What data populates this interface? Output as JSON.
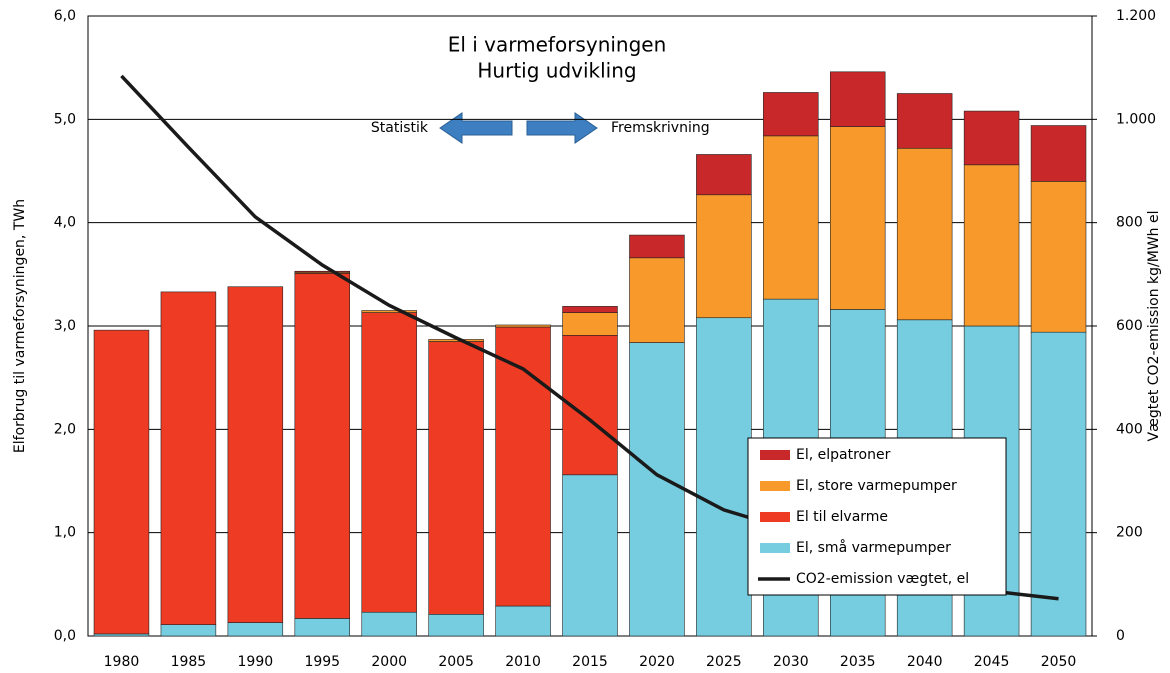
{
  "chart_data": {
    "type": "bar",
    "stacked": true,
    "title": "El i varmeforsyningen",
    "subtitle": "Hurtig udvikling",
    "annotations": [
      "Statistik",
      "Fremskrivning"
    ],
    "ylabel": "Elforbrug til varmeforsyningen, TWh",
    "y2label": "Vægtet CO2-emission  kg/MWh el",
    "categories": [
      "1980",
      "1985",
      "1990",
      "1995",
      "2000",
      "2005",
      "2010",
      "2015",
      "2020",
      "2025",
      "2030",
      "2035",
      "2040",
      "2045",
      "2050"
    ],
    "series": [
      {
        "name": "El, små varmepumper",
        "color": "#76cde0",
        "values": [
          0.02,
          0.11,
          0.13,
          0.17,
          0.23,
          0.21,
          0.29,
          1.56,
          2.84,
          3.08,
          3.26,
          3.16,
          3.06,
          3.0,
          2.94
        ]
      },
      {
        "name": "El til elvarme",
        "color": "#ee3b24",
        "values": [
          2.94,
          3.22,
          3.25,
          3.34,
          2.9,
          2.64,
          2.7,
          1.35,
          0,
          0,
          0,
          0,
          0,
          0,
          0
        ]
      },
      {
        "name": "El, store varmepumper",
        "color": "#f7992b",
        "values": [
          0,
          0,
          0,
          0.01,
          0.02,
          0.02,
          0.02,
          0.22,
          0.82,
          1.19,
          1.58,
          1.77,
          1.66,
          1.56,
          1.46
        ]
      },
      {
        "name": "El, elpatroner",
        "color": "#c8282a",
        "values": [
          0,
          0,
          0,
          0.01,
          0,
          0,
          0,
          0.06,
          0.22,
          0.39,
          0.42,
          0.53,
          0.53,
          0.52,
          0.54
        ]
      },
      {
        "name": "CO2-emission vægtet, el",
        "color": "#1a1a1a",
        "type": "line",
        "axis": "y2",
        "values": [
          1084,
          946,
          811,
          718,
          640,
          577,
          517,
          418,
          312,
          244,
          205,
          150,
          120,
          87,
          72
        ]
      }
    ],
    "ylim": [
      0,
      6
    ],
    "yticks": [
      {
        "value": 0,
        "label": "0,0"
      },
      {
        "value": 1,
        "label": "1,0"
      },
      {
        "value": 2,
        "label": "2,0"
      },
      {
        "value": 3,
        "label": "3,0"
      },
      {
        "value": 4,
        "label": "4,0"
      },
      {
        "value": 5,
        "label": "5,0"
      },
      {
        "value": 6,
        "label": "6,0"
      }
    ],
    "y2lim": [
      0,
      1200
    ],
    "y2ticks": [
      0,
      200,
      400,
      600,
      800,
      {
        "value": 1000,
        "label": "1.000"
      },
      {
        "value": 1200,
        "label": "1.200"
      }
    ],
    "grid": true,
    "legend": "lower right"
  }
}
